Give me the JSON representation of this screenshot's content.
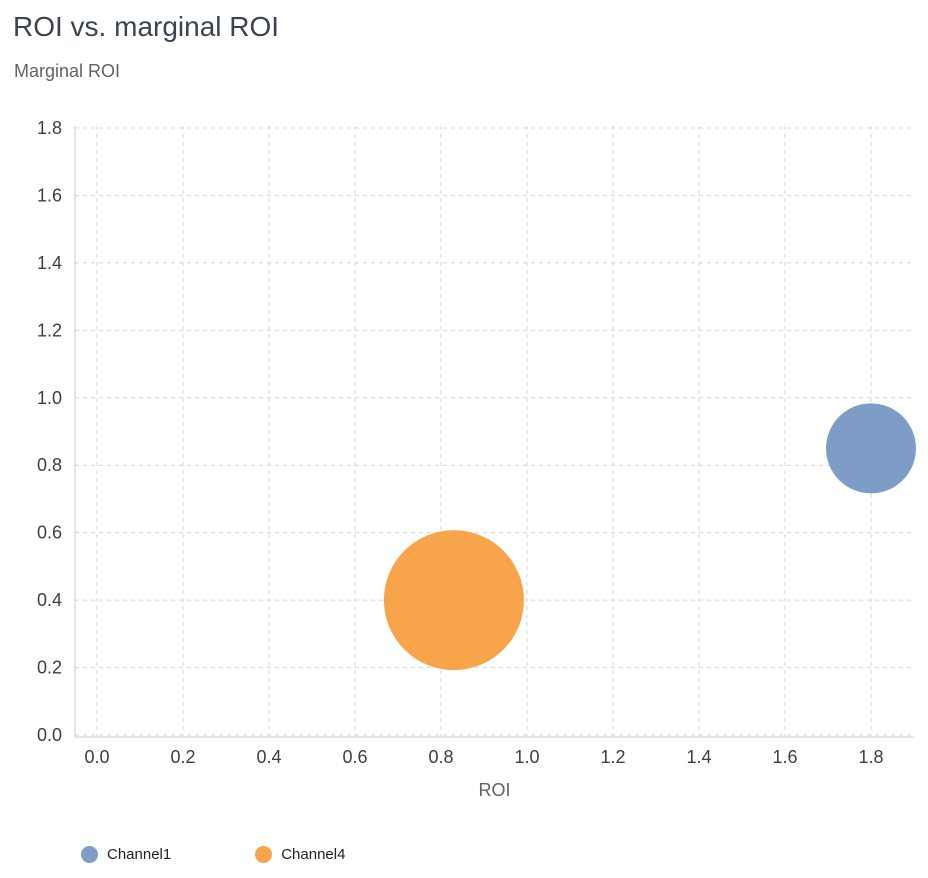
{
  "header": {
    "title": "ROI vs. marginal ROI",
    "y_axis_title": "Marginal ROI"
  },
  "chart_data": {
    "type": "scatter",
    "variant": "bubble",
    "title": "ROI vs. marginal ROI",
    "xlabel": "ROI",
    "ylabel": "Marginal ROI",
    "xlim": [
      0,
      1.8
    ],
    "ylim": [
      0,
      1.8
    ],
    "grid": "dashed",
    "grid_color": "#d4d4d4",
    "axis_line_color": "#c9cdd2",
    "tick_label_color": "#3c4043",
    "axis_title_color": "#5f6368",
    "legend_position": "bottom-left",
    "xticks": [
      {
        "value": 0.0,
        "label": "0.0"
      },
      {
        "value": 0.2,
        "label": "0.2"
      },
      {
        "value": 0.4,
        "label": "0.4"
      },
      {
        "value": 0.6,
        "label": "0.6"
      },
      {
        "value": 0.8,
        "label": "0.8"
      },
      {
        "value": 1.0,
        "label": "1.0"
      },
      {
        "value": 1.2,
        "label": "1.2"
      },
      {
        "value": 1.4,
        "label": "1.4"
      },
      {
        "value": 1.6,
        "label": "1.6"
      },
      {
        "value": 1.8,
        "label": "1.8"
      }
    ],
    "yticks": [
      {
        "value": 0.0,
        "label": "0.0"
      },
      {
        "value": 0.2,
        "label": "0.2"
      },
      {
        "value": 0.4,
        "label": "0.4"
      },
      {
        "value": 0.6,
        "label": "0.6"
      },
      {
        "value": 0.8,
        "label": "0.8"
      },
      {
        "value": 1.0,
        "label": "1.0"
      },
      {
        "value": 1.2,
        "label": "1.2"
      },
      {
        "value": 1.4,
        "label": "1.4"
      },
      {
        "value": 1.6,
        "label": "1.6"
      },
      {
        "value": 1.8,
        "label": "1.8"
      }
    ],
    "series": [
      {
        "name": "Channel1",
        "color": "#7d9cc6",
        "points": [
          {
            "x": 1.8,
            "y": 0.85,
            "radius_px": 45
          }
        ]
      },
      {
        "name": "Channel4",
        "color": "#f8a44b",
        "points": [
          {
            "x": 0.83,
            "y": 0.4,
            "radius_px": 70
          }
        ]
      }
    ]
  }
}
